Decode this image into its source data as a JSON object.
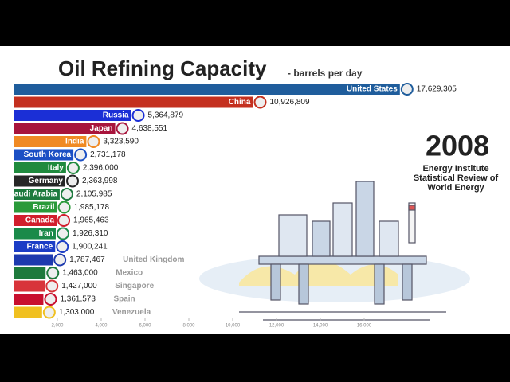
{
  "chart_data": {
    "type": "bar",
    "orientation": "horizontal",
    "title": "Oil Refining Capacity",
    "subtitle": "- barrels per day",
    "year": "2008",
    "source": [
      "Energy Institute",
      "Statistical Review of",
      "World Energy"
    ],
    "categories": [
      "United States",
      "China",
      "Russia",
      "Japan",
      "India",
      "South Korea",
      "Italy",
      "Germany",
      "Saudi Arabia",
      "Brazil",
      "Canada",
      "Iran",
      "France",
      "United Kingdom",
      "Mexico",
      "Singapore",
      "Spain",
      "Venezuela"
    ],
    "values": [
      17629.305,
      10926.809,
      5364.879,
      4638.551,
      3323.59,
      2731.178,
      2396,
      2363.998,
      2105.985,
      1985.178,
      1965.463,
      1926.31,
      1900.241,
      1787.467,
      1463,
      1427,
      1361.573,
      1303
    ],
    "value_labels": [
      "17,629,305",
      "10,926,809",
      "5,364,879",
      "4,638,551",
      "3,323,590",
      "2,731,178",
      "2,396,000",
      "2,363,998",
      "2,105,985",
      "1,985,178",
      "1,965,463",
      "1,926,310",
      "1,900,241",
      "1,787,467",
      "1,463,000",
      "1,427,000",
      "1,361,573",
      "1,303,000"
    ],
    "colors": [
      "#1f5d9c",
      "#c4301f",
      "#1b2fd6",
      "#a8143c",
      "#f08a24",
      "#1b4fc4",
      "#1f8a3d",
      "#262626",
      "#1d7a3e",
      "#2a9a3a",
      "#d11e2d",
      "#1a8a4a",
      "#1b3dc6",
      "#1d3aae",
      "#1e7a3c",
      "#d8343a",
      "#c8102e",
      "#f0c020"
    ],
    "xlim": [
      0,
      18000
    ],
    "xticks": [
      {
        "value": 2000,
        "label": "2,000"
      },
      {
        "value": 4000,
        "label": "4,000"
      },
      {
        "value": 6000,
        "label": "6,000"
      },
      {
        "value": 8000,
        "label": "8,000"
      },
      {
        "value": 10000,
        "label": "10,000"
      },
      {
        "value": 12000,
        "label": "12,000"
      },
      {
        "value": 14000,
        "label": "14,000"
      },
      {
        "value": 16000,
        "label": "16,000"
      }
    ]
  }
}
